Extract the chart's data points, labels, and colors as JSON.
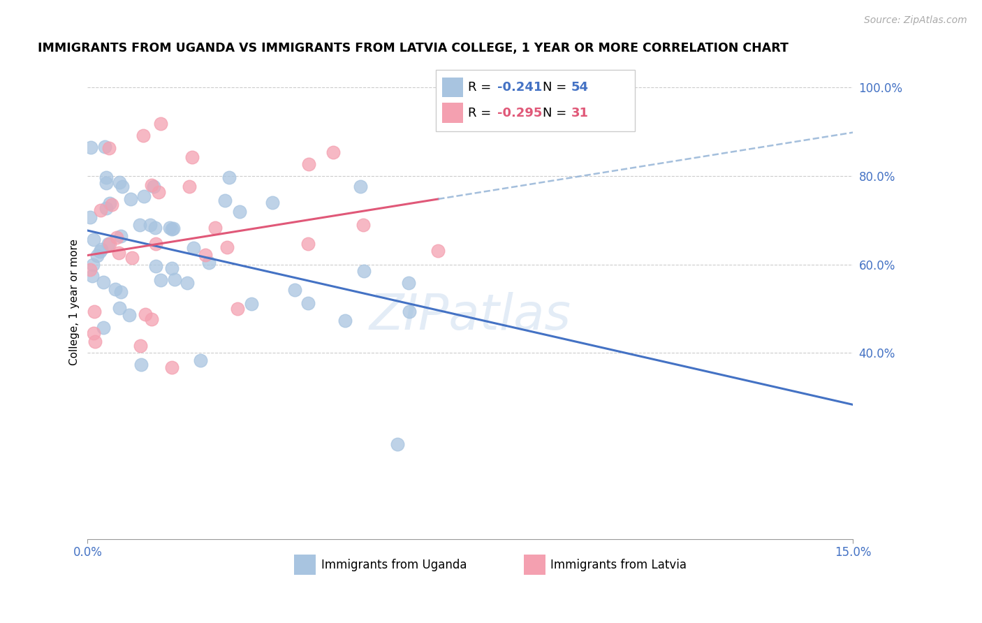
{
  "title": "IMMIGRANTS FROM UGANDA VS IMMIGRANTS FROM LATVIA COLLEGE, 1 YEAR OR MORE CORRELATION CHART",
  "source": "Source: ZipAtlas.com",
  "ylabel": "College, 1 year or more",
  "xmin": 0.0,
  "xmax": 0.15,
  "ymin": 0.0,
  "ymax": 1.05,
  "right_yticks": [
    0.4,
    0.6,
    0.8,
    1.0
  ],
  "right_yticklabels": [
    "40.0%",
    "60.0%",
    "80.0%",
    "100.0%"
  ],
  "xticks": [
    0.0,
    0.15
  ],
  "xticklabels": [
    "0.0%",
    "15.0%"
  ],
  "uganda_color": "#a8c4e0",
  "latvia_color": "#f4a0b0",
  "uganda_line_color": "#4472c4",
  "latvia_line_color": "#e05878",
  "dash_line_color": "#8eafd4",
  "watermark": "ZIPatlas",
  "legend_r1": "-0.241",
  "legend_n1": "54",
  "legend_r2": "-0.295",
  "legend_n2": "31",
  "legend_color1": "#4472c4",
  "legend_color2": "#e05878",
  "bottom_label1": "Immigrants from Uganda",
  "bottom_label2": "Immigrants from Latvia"
}
